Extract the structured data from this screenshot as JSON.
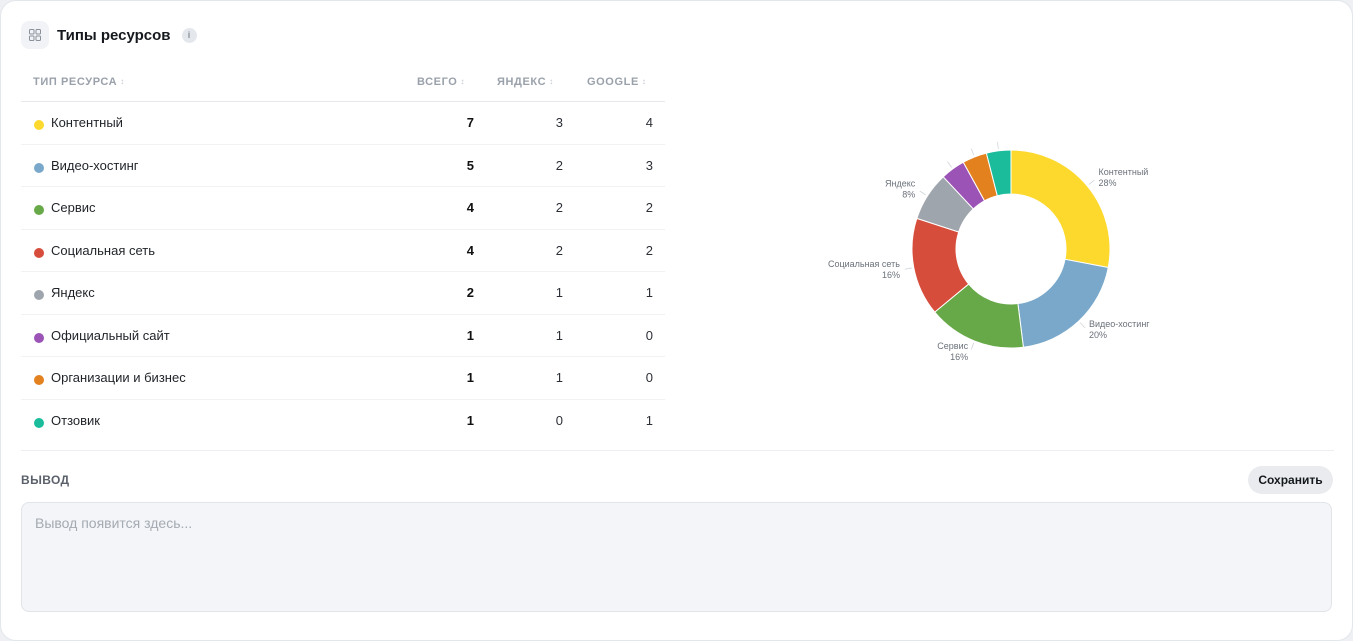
{
  "header": {
    "title": "Типы ресурсов",
    "info_glyph": "i",
    "icon": "grid-icon"
  },
  "table": {
    "columns": [
      {
        "label": "ТИП РЕСУРСА"
      },
      {
        "label": "ВСЕГО"
      },
      {
        "label": "ЯНДЕКС"
      },
      {
        "label": "GOOGLE"
      }
    ],
    "rows": [
      {
        "name": "Контентный",
        "total": "7",
        "yandex": "3",
        "google": "4",
        "color": "#fdd92d"
      },
      {
        "name": "Видео-хостинг",
        "total": "5",
        "yandex": "2",
        "google": "3",
        "color": "#79a8ca"
      },
      {
        "name": "Сервис",
        "total": "4",
        "yandex": "2",
        "google": "2",
        "color": "#67a948"
      },
      {
        "name": "Социальная сеть",
        "total": "4",
        "yandex": "2",
        "google": "2",
        "color": "#d74d3b"
      },
      {
        "name": "Яндекс",
        "total": "2",
        "yandex": "1",
        "google": "1",
        "color": "#9fa5ad"
      },
      {
        "name": "Официальный сайт",
        "total": "1",
        "yandex": "1",
        "google": "0",
        "color": "#9b54b6"
      },
      {
        "name": "Организации и бизнес",
        "total": "1",
        "yandex": "1",
        "google": "0",
        "color": "#e3811f"
      },
      {
        "name": "Отзовик",
        "total": "1",
        "yandex": "0",
        "google": "1",
        "color": "#1abc9c"
      }
    ]
  },
  "chart_data": {
    "type": "pie",
    "donut": true,
    "categories": [
      "Контентный",
      "Видео-хостинг",
      "Сервис",
      "Социальная сеть",
      "Яндекс",
      "Официальный сайт",
      "Организации и бизнес",
      "Отзовик"
    ],
    "values": [
      7,
      5,
      4,
      4,
      2,
      1,
      1,
      1
    ],
    "colors": [
      "#fdd92d",
      "#79a8ca",
      "#67a948",
      "#d74d3b",
      "#9fa5ad",
      "#9b54b6",
      "#e3811f",
      "#1abc9c"
    ],
    "labels": [
      {
        "name": "Контентный",
        "pct": "28%"
      },
      {
        "name": "Видео-хостинг",
        "pct": "20%"
      },
      {
        "name": "Сервис",
        "pct": "16%"
      },
      {
        "name": "Социальная сеть",
        "pct": "16%"
      },
      {
        "name": "Яндекс",
        "pct": "8%"
      }
    ]
  },
  "output": {
    "label": "ВЫВОД",
    "save_label": "Сохранить",
    "placeholder": "Вывод появится здесь...",
    "value": ""
  }
}
